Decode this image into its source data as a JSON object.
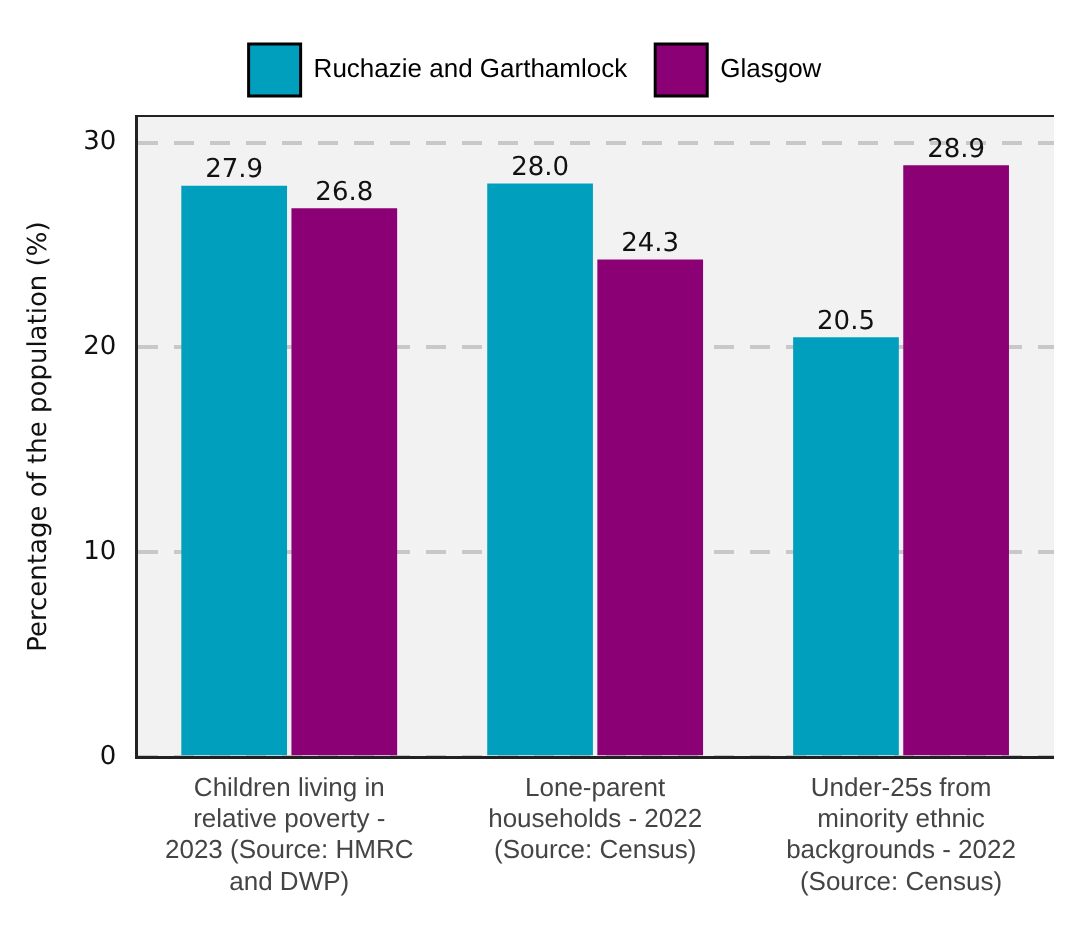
{
  "chart_data": {
    "type": "bar",
    "ylabel": "Percentage of the population (%)",
    "categories": [
      "Children living in relative poverty - 2023 (Source: HMRC and DWP)",
      "Lone-parent households - 2022 (Source: Census)",
      "Under-25s from minority ethnic backgrounds - 2022 (Source: Census)"
    ],
    "series": [
      {
        "name": "Ruchazie and Garthamlock",
        "color": "#009fbd",
        "values": [
          27.9,
          28.0,
          20.5
        ],
        "value_labels": [
          "27.9",
          "28.0",
          "20.5"
        ]
      },
      {
        "name": "Glasgow",
        "color": "#8b0075",
        "values": [
          26.8,
          24.3,
          28.9
        ],
        "value_labels": [
          "26.8",
          "24.3",
          "28.9"
        ]
      }
    ],
    "ylim": [
      0,
      31.3
    ],
    "yticks": [
      0,
      10,
      20,
      30
    ],
    "grid": "y",
    "legend": "top"
  }
}
